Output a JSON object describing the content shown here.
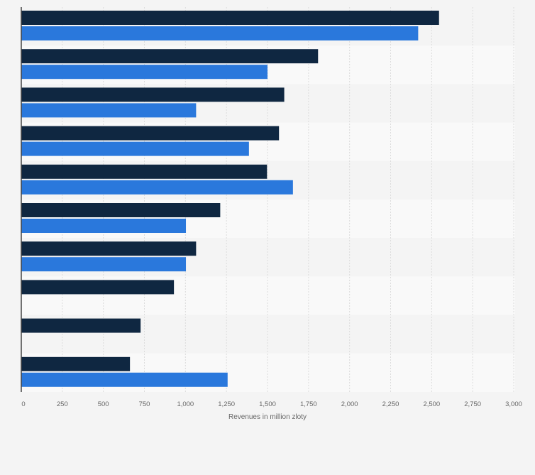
{
  "chart_data": {
    "type": "bar",
    "orientation": "horizontal",
    "title": "",
    "xlabel": "Revenues in million zloty",
    "ylabel": "",
    "xlim": [
      0,
      3000
    ],
    "xticks": [
      0,
      250,
      500,
      750,
      1000,
      1250,
      1500,
      1750,
      2000,
      2250,
      2500,
      2750,
      3000
    ],
    "tick_labels": [
      "0",
      "250",
      "500",
      "750",
      "1,000",
      "1,250",
      "1,500",
      "1,750",
      "2,000",
      "2,250",
      "2,500",
      "2,750",
      "3,000"
    ],
    "grid": true,
    "legend": "none",
    "categories": [
      "",
      "",
      "",
      "",
      "",
      "",
      "",
      "",
      "",
      ""
    ],
    "series": [
      {
        "color": "#0f2741",
        "values": [
          2545,
          1808,
          1602,
          1570,
          1497,
          1212,
          1065,
          930,
          727,
          662
        ]
      },
      {
        "color": "#2a78dc",
        "values": [
          2418,
          1500,
          1065,
          1387,
          1655,
          1003,
          1003,
          null,
          null,
          1257
        ]
      }
    ],
    "colors": {
      "background": "#f4f4f4",
      "band_light": "#f9f9f9",
      "band_dark": "#f4f4f4",
      "grid": "#dcdcdc",
      "axis": "#444444"
    }
  }
}
